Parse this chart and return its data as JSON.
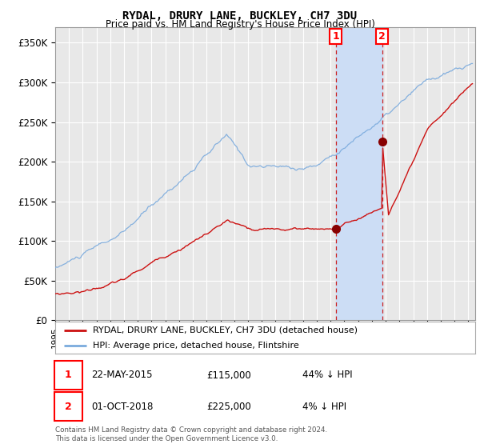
{
  "title": "RYDAL, DRURY LANE, BUCKLEY, CH7 3DU",
  "subtitle": "Price paid vs. HM Land Registry's House Price Index (HPI)",
  "ylim": [
    0,
    370000
  ],
  "yticks": [
    0,
    50000,
    100000,
    150000,
    200000,
    250000,
    300000,
    350000
  ],
  "ytick_labels": [
    "£0",
    "£50K",
    "£100K",
    "£150K",
    "£200K",
    "£250K",
    "£300K",
    "£350K"
  ],
  "xlim_start": 1995.0,
  "xlim_end": 2025.5,
  "hpi_color": "#7aaadd",
  "price_color": "#cc1111",
  "marker_color": "#880000",
  "sale1_x": 2015.38,
  "sale1_y": 115000,
  "sale2_x": 2018.75,
  "sale2_y": 225000,
  "annotation1_date": "22-MAY-2015",
  "annotation1_price": "£115,000",
  "annotation1_hpi": "44% ↓ HPI",
  "annotation2_date": "01-OCT-2018",
  "annotation2_price": "£225,000",
  "annotation2_hpi": "4% ↓ HPI",
  "legend_label1": "RYDAL, DRURY LANE, BUCKLEY, CH7 3DU (detached house)",
  "legend_label2": "HPI: Average price, detached house, Flintshire",
  "footer": "Contains HM Land Registry data © Crown copyright and database right 2024.\nThis data is licensed under the Open Government Licence v3.0.",
  "background_color": "#ffffff",
  "plot_bg_color": "#e8e8e8",
  "shade_color": "#ccddf5",
  "grid_color": "#ffffff",
  "title_fontsize": 10,
  "subtitle_fontsize": 8.5
}
